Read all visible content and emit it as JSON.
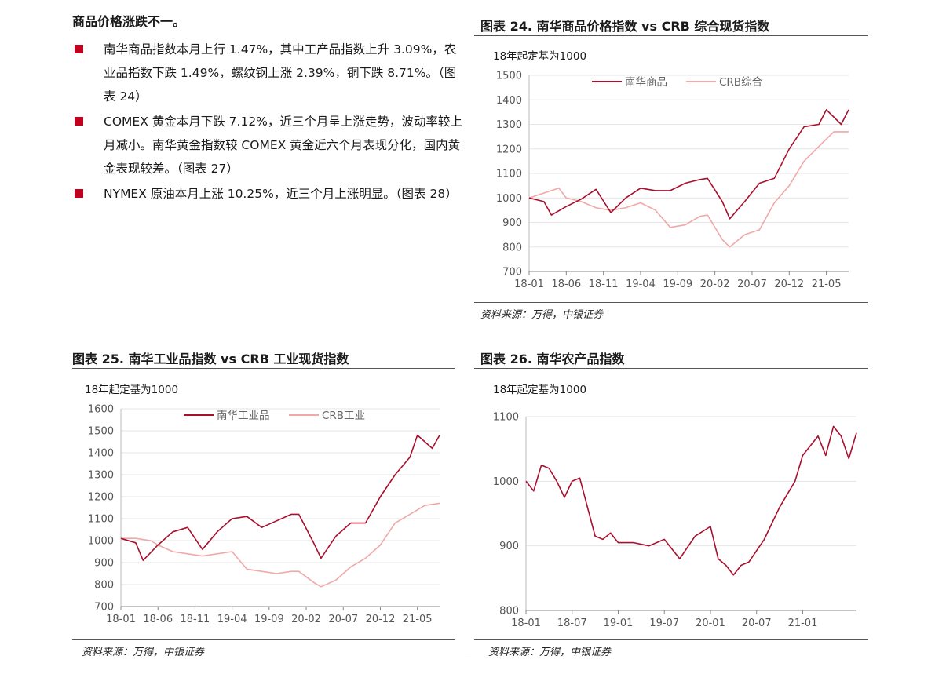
{
  "summary": {
    "heading": "商品价格涨跌不一。",
    "bullets": [
      "南华商品指数本月上行 1.47%，其中工产品指数上升 3.09%，农业品指数下跌 1.49%，螺纹钢上涨 2.39%，铜下跌 8.71%。（图表 24）",
      "COMEX 黄金本月下跌 7.12%，近三个月呈上涨走势，波动率较上月减小。南华黄金指数较 COMEX 黄金近六个月表现分化，国内黄金表现较差。（图表 27）",
      "NYMEX 原油本月上涨 10.25%，近三个月上涨明显。（图表 28）"
    ]
  },
  "colors": {
    "primary": "#a8102e",
    "secondary": "#f0a8a8",
    "bullet": "#c1001f"
  },
  "chart_data": [
    {
      "id": "fig24",
      "type": "line",
      "title": "图表 24. 南华商品价格指数 vs CRB 综合现货指数",
      "subtitle": "18年起定基为1000",
      "source": "资料来源：万得，中银证券",
      "ylim": [
        700,
        1500
      ],
      "yticks": [
        700,
        800,
        900,
        1000,
        1100,
        1200,
        1300,
        1400,
        1500
      ],
      "x_range": [
        "2018-01",
        "2021-08"
      ],
      "xticks": [
        "18-01",
        "18-06",
        "18-11",
        "19-04",
        "19-09",
        "20-02",
        "20-07",
        "20-12",
        "21-05"
      ],
      "legend_position": "top",
      "series": [
        {
          "name": "南华商品",
          "x": [
            "2018-01",
            "2018-03",
            "2018-04",
            "2018-06",
            "2018-08",
            "2018-10",
            "2018-12",
            "2019-02",
            "2019-04",
            "2019-06",
            "2019-08",
            "2019-10",
            "2019-12",
            "2020-01",
            "2020-03",
            "2020-04",
            "2020-06",
            "2020-08",
            "2020-10",
            "2020-12",
            "2021-02",
            "2021-04",
            "2021-05",
            "2021-07",
            "2021-08"
          ],
          "values": [
            1000,
            985,
            930,
            965,
            995,
            1035,
            940,
            1000,
            1040,
            1030,
            1030,
            1060,
            1075,
            1080,
            985,
            915,
            985,
            1060,
            1080,
            1200,
            1290,
            1300,
            1360,
            1300,
            1360
          ]
        },
        {
          "name": "CRB综合",
          "x": [
            "2018-01",
            "2018-03",
            "2018-05",
            "2018-06",
            "2018-08",
            "2018-10",
            "2018-12",
            "2019-02",
            "2019-04",
            "2019-06",
            "2019-08",
            "2019-10",
            "2019-12",
            "2020-01",
            "2020-03",
            "2020-04",
            "2020-06",
            "2020-08",
            "2020-10",
            "2020-12",
            "2021-02",
            "2021-04",
            "2021-06",
            "2021-08"
          ],
          "values": [
            1000,
            1020,
            1040,
            1000,
            985,
            960,
            950,
            960,
            980,
            950,
            880,
            890,
            925,
            930,
            830,
            800,
            850,
            870,
            980,
            1050,
            1150,
            1210,
            1270,
            1270
          ]
        }
      ]
    },
    {
      "id": "fig25",
      "type": "line",
      "title": "图表 25. 南华工业品指数 vs CRB 工业现货指数",
      "subtitle": "18年起定基为1000",
      "source": "资料来源：万得，中银证券",
      "ylim": [
        700,
        1600
      ],
      "yticks": [
        700,
        800,
        900,
        1000,
        1100,
        1200,
        1300,
        1400,
        1500,
        1600
      ],
      "x_range": [
        "2018-01",
        "2021-08"
      ],
      "xticks": [
        "18-01",
        "18-06",
        "18-11",
        "19-04",
        "19-09",
        "20-02",
        "20-07",
        "20-12",
        "21-05"
      ],
      "legend_position": "top",
      "series": [
        {
          "name": "南华工业品",
          "x": [
            "2018-01",
            "2018-03",
            "2018-04",
            "2018-06",
            "2018-08",
            "2018-10",
            "2018-12",
            "2019-02",
            "2019-04",
            "2019-06",
            "2019-08",
            "2019-10",
            "2019-12",
            "2020-01",
            "2020-03",
            "2020-04",
            "2020-06",
            "2020-08",
            "2020-10",
            "2020-12",
            "2021-02",
            "2021-04",
            "2021-05",
            "2021-07",
            "2021-08"
          ],
          "values": [
            1010,
            990,
            910,
            980,
            1040,
            1060,
            960,
            1040,
            1100,
            1110,
            1060,
            1090,
            1120,
            1120,
            990,
            920,
            1020,
            1080,
            1080,
            1200,
            1300,
            1380,
            1480,
            1420,
            1480
          ]
        },
        {
          "name": "CRB工业",
          "x": [
            "2018-01",
            "2018-03",
            "2018-05",
            "2018-06",
            "2018-08",
            "2018-10",
            "2018-12",
            "2019-02",
            "2019-04",
            "2019-06",
            "2019-08",
            "2019-10",
            "2019-12",
            "2020-01",
            "2020-03",
            "2020-04",
            "2020-06",
            "2020-08",
            "2020-10",
            "2020-12",
            "2021-02",
            "2021-04",
            "2021-06",
            "2021-08"
          ],
          "values": [
            1010,
            1010,
            1000,
            980,
            950,
            940,
            930,
            940,
            950,
            870,
            860,
            850,
            860,
            860,
            810,
            790,
            820,
            880,
            920,
            980,
            1080,
            1120,
            1160,
            1170
          ]
        }
      ]
    },
    {
      "id": "fig26",
      "type": "line",
      "title": "图表 26. 南华农产品指数",
      "subtitle": "18年起定基为1000",
      "source": "资料来源：万得，中银证券",
      "ylim": [
        800,
        1100
      ],
      "yticks": [
        800,
        900,
        1000,
        1100
      ],
      "x_range": [
        "2018-01",
        "2021-08"
      ],
      "xticks": [
        "18-01",
        "18-07",
        "19-01",
        "19-07",
        "20-01",
        "20-07",
        "21-01"
      ],
      "legend_position": "none",
      "series": [
        {
          "name": "",
          "x": [
            "2018-01",
            "2018-02",
            "2018-03",
            "2018-04",
            "2018-05",
            "2018-06",
            "2018-07",
            "2018-08",
            "2018-09",
            "2018-10",
            "2018-11",
            "2018-12",
            "2019-01",
            "2019-03",
            "2019-05",
            "2019-07",
            "2019-09",
            "2019-11",
            "2020-01",
            "2020-02",
            "2020-03",
            "2020-04",
            "2020-05",
            "2020-06",
            "2020-08",
            "2020-10",
            "2020-12",
            "2021-01",
            "2021-03",
            "2021-04",
            "2021-05",
            "2021-06",
            "2021-07",
            "2021-08"
          ],
          "values": [
            1000,
            985,
            1025,
            1020,
            1000,
            975,
            1000,
            1005,
            960,
            915,
            910,
            920,
            905,
            905,
            900,
            910,
            880,
            915,
            930,
            880,
            870,
            855,
            870,
            875,
            910,
            960,
            1000,
            1040,
            1070,
            1040,
            1085,
            1070,
            1035,
            1075
          ]
        }
      ]
    }
  ]
}
